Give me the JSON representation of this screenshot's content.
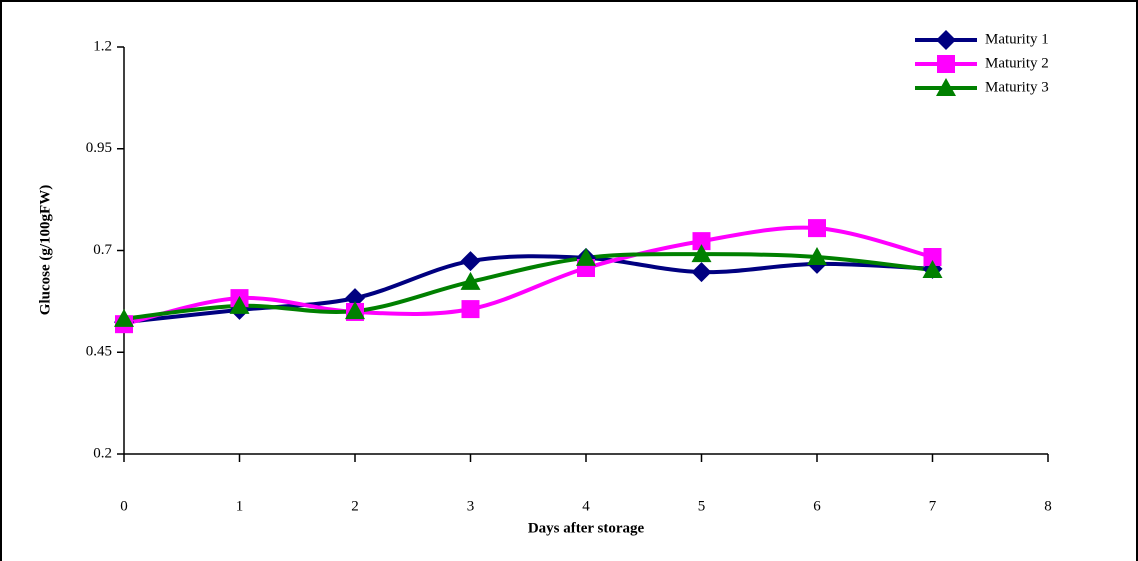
{
  "chart_data": {
    "type": "line",
    "x_label": "Days after storage",
    "y_label": "Glucose (g/100gFW)",
    "x": [
      0,
      1,
      2,
      3,
      4,
      5,
      6,
      7
    ],
    "xlim": [
      0,
      8
    ],
    "xticks": [
      0,
      1,
      2,
      3,
      4,
      5,
      6,
      7,
      8
    ],
    "ylim": [
      0.2,
      1.2
    ],
    "yticks": [
      0.2,
      0.45,
      0.7,
      0.95,
      1.2
    ],
    "smooth": true,
    "legend": "top-right",
    "series": [
      {
        "name": "Maturity 1",
        "color": "#000080",
        "marker": "diamond",
        "values": [
          0.524,
          0.554,
          0.583,
          0.674,
          0.682,
          0.647,
          0.667,
          0.655
        ]
      },
      {
        "name": "Maturity 2",
        "color": "#ff00ff",
        "marker": "square",
        "values": [
          0.519,
          0.583,
          0.549,
          0.556,
          0.657,
          0.723,
          0.755,
          0.684
        ]
      },
      {
        "name": "Maturity 3",
        "color": "#008000",
        "marker": "triangle",
        "values": [
          0.532,
          0.564,
          0.551,
          0.623,
          0.682,
          0.691,
          0.684,
          0.652
        ]
      }
    ]
  }
}
